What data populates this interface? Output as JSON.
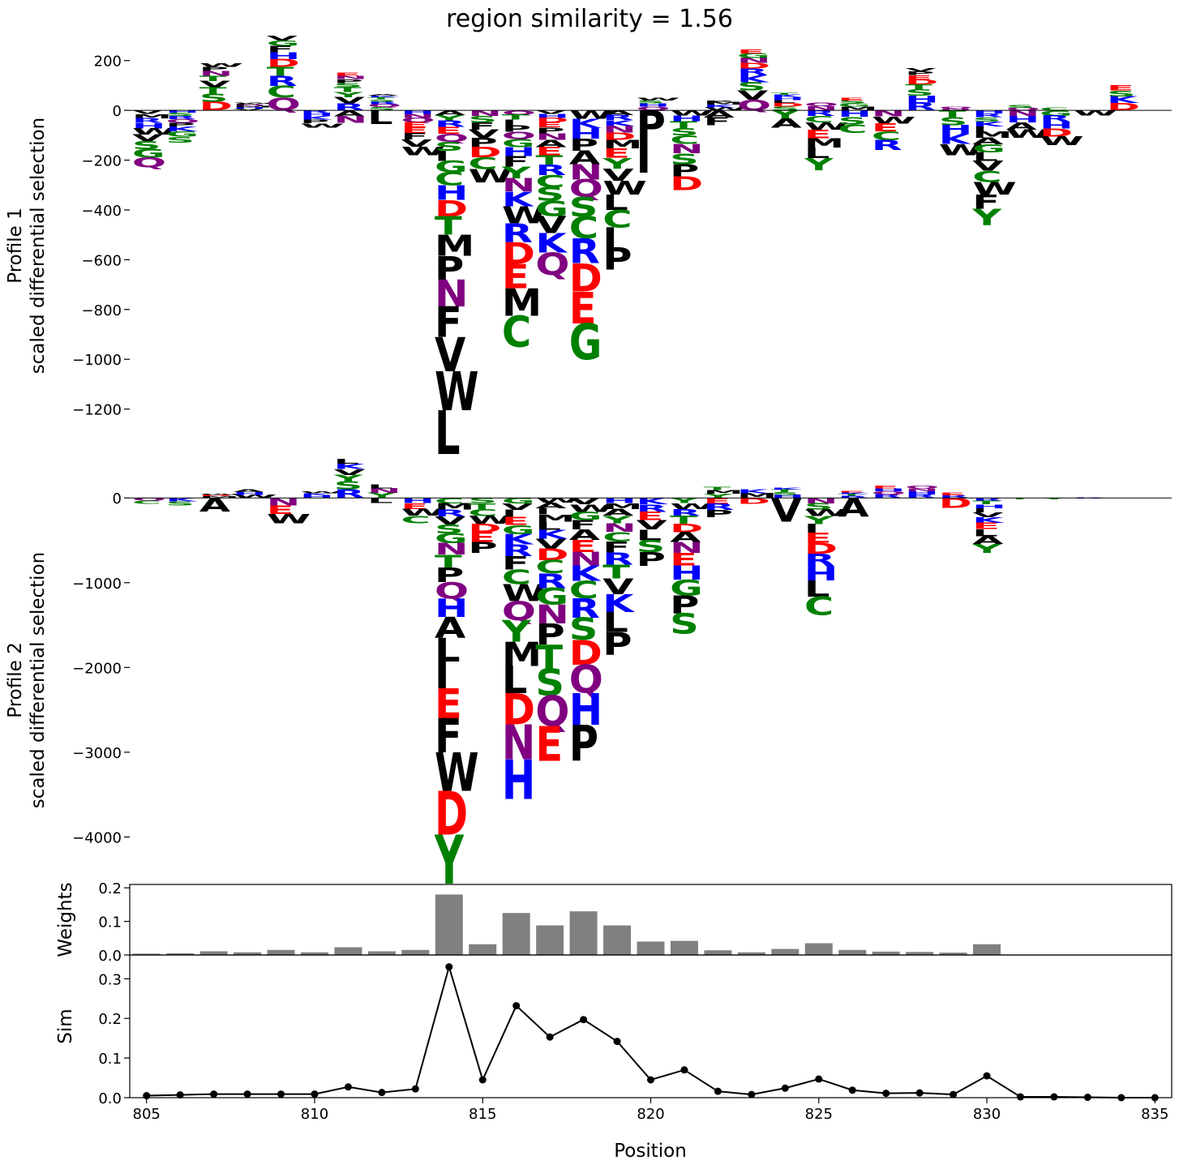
{
  "title": "region similarity = 1.56",
  "xlabel": "Position",
  "colors": {
    "green": "#008000",
    "blue": "#0000ff",
    "red": "#ff0000",
    "purple": "#800080",
    "black": "#000000",
    "bar": "#808080",
    "line": "#000000"
  },
  "letter_colors": {
    "A": "black",
    "F": "black",
    "I": "black",
    "L": "black",
    "M": "black",
    "P": "black",
    "V": "black",
    "W": "black",
    "C": "green",
    "G": "green",
    "S": "green",
    "T": "green",
    "Y": "green",
    "H": "blue",
    "K": "blue",
    "R": "blue",
    "D": "red",
    "E": "red",
    "N": "purple",
    "Q": "purple"
  },
  "chart_data": [
    {
      "type": "logo",
      "ylabel": "Profile 1\nscaled differential selection",
      "ylim": [
        -1400,
        300
      ],
      "yticks": [
        200,
        0,
        -200,
        -400,
        -600,
        -800,
        -1000,
        -1200
      ],
      "xlim": [
        804.5,
        835.5
      ],
      "positions": [
        {
          "x": 805,
          "up": "",
          "up_total": 0,
          "down": "VMRHWVSGQ",
          "down_total": -230
        },
        {
          "x": 806,
          "up": "",
          "up_total": 0,
          "down": "HSRQPKGS",
          "down_total": -130
        },
        {
          "x": 807,
          "up": "DSTVTNPW",
          "up_total": 190,
          "down": "",
          "down_total": 0
        },
        {
          "x": 808,
          "up": "VHMNPW",
          "up_total": 30,
          "down": "",
          "down_total": -30
        },
        {
          "x": 809,
          "up": "QCRTDHFGV",
          "up_total": 300,
          "down": "",
          "down_total": 0
        },
        {
          "x": 810,
          "up": "",
          "up_total": 10,
          "down": "RHKPW",
          "down_total": -70
        },
        {
          "x": 811,
          "up": "RVYTSPNE",
          "up_total": 150,
          "down": "AN",
          "down_total": -50
        },
        {
          "x": 812,
          "up": "SQRSTKA",
          "up_total": 65,
          "down": "L",
          "down_total": -55
        },
        {
          "x": 813,
          "up": "",
          "up_total": 0,
          "down": "HNQEEFVW",
          "down_total": -180
        },
        {
          "x": 814,
          "up": "",
          "up_total": 0,
          "down": "AYREQSIGCHDTMPNFVWL",
          "down_total": -1380
        },
        {
          "x": 815,
          "up": "",
          "up_total": 0,
          "down": "NSFVPDCW",
          "down_total": -290
        },
        {
          "x": 816,
          "up": "",
          "up_total": 0,
          "down": "QTIPQGHFYNKWRDEMC",
          "down_total": -950
        },
        {
          "x": 817,
          "up": "",
          "up_total": 0,
          "down": "VHDEPNAETRCSGVKQ",
          "down_total": -660
        },
        {
          "x": 818,
          "up": "",
          "up_total": 0,
          "down": "WKHPANQSCRDEG",
          "down_total": -1000
        },
        {
          "x": 819,
          "up": "",
          "up_total": 0,
          "down": "ARKNDMEYVWLCIP",
          "down_total": -640
        },
        {
          "x": 820,
          "up": "QHSW",
          "up_total": 50,
          "down": "PI",
          "down_total": -250
        },
        {
          "x": 821,
          "up": "",
          "up_total": 0,
          "down": "WHTSCNSPD",
          "down_total": -320
        },
        {
          "x": 822,
          "up": "WKMP",
          "up_total": 40,
          "down": "AF",
          "down_total": -60
        },
        {
          "x": 823,
          "up": "QVSKRDNGE",
          "up_total": 245,
          "down": "",
          "down_total": 0
        },
        {
          "x": 824,
          "up": "SDLHKT",
          "up_total": 70,
          "down": "YA",
          "down_total": -70
        },
        {
          "x": 825,
          "up": "NQ",
          "up_total": 30,
          "down": "RCWEMLY",
          "down_total": -240
        },
        {
          "x": 826,
          "up": "MGSE",
          "up_total": 50,
          "down": "HSC",
          "down_total": -90
        },
        {
          "x": 827,
          "up": "",
          "up_total": 0,
          "down": "NWECR",
          "down_total": -160
        },
        {
          "x": 828,
          "up": "RHSTDEPV",
          "up_total": 170,
          "down": "",
          "down_total": 0
        },
        {
          "x": 829,
          "up": "NQ",
          "up_total": 15,
          "down": "TSHKW",
          "down_total": -180
        },
        {
          "x": 830,
          "up": "",
          "up_total": 0,
          "down": "HRSKIMAGLVCWFY",
          "down_total": -460
        },
        {
          "x": 831,
          "up": "QS",
          "up_total": 20,
          "down": "NHAW",
          "down_total": -110
        },
        {
          "x": 832,
          "up": "C",
          "up_total": 10,
          "down": "GRHDW",
          "down_total": -140
        },
        {
          "x": 833,
          "up": "",
          "up_total": 10,
          "down": "W",
          "down_total": -20
        },
        {
          "x": 834,
          "up": "DKSE",
          "up_total": 100,
          "down": "",
          "down_total": 0
        },
        {
          "x": 835,
          "up": "",
          "up_total": 2,
          "down": "",
          "down_total": 0
        }
      ]
    },
    {
      "type": "logo",
      "ylabel": "Profile 2\nscaled differential selection",
      "ylim": [
        -4550,
        480
      ],
      "yticks": [
        0,
        -1000,
        -2000,
        -3000,
        -4000
      ],
      "xlim": [
        804.5,
        835.5
      ],
      "positions": [
        {
          "x": 805,
          "up": "",
          "up_total": 0,
          "down": "QC",
          "down_total": -70
        },
        {
          "x": 806,
          "up": "",
          "up_total": 0,
          "down": "KS",
          "down_total": -90
        },
        {
          "x": 807,
          "up": "MDW",
          "up_total": 50,
          "down": "A",
          "down_total": -160
        },
        {
          "x": 808,
          "up": "WHA",
          "up_total": 100,
          "down": "",
          "down_total": -90
        },
        {
          "x": 809,
          "up": "",
          "up_total": 0,
          "down": "NEW",
          "down_total": -300
        },
        {
          "x": 810,
          "up": "HKW",
          "up_total": 80,
          "down": "",
          "down_total": -60
        },
        {
          "x": 811,
          "up": "RSYVKL",
          "up_total": 460,
          "down": "",
          "down_total": 0
        },
        {
          "x": 812,
          "up": "YNL",
          "up_total": 160,
          "down": "L",
          "down_total": -60
        },
        {
          "x": 813,
          "up": "",
          "up_total": 0,
          "down": "HEWC",
          "down_total": -300
        },
        {
          "x": 814,
          "up": "",
          "up_total": 0,
          "down": "CMRVSGNTPQHALIEFWDY",
          "down_total": -4550
        },
        {
          "x": 815,
          "up": "",
          "up_total": 0,
          "down": "STCWDEP",
          "down_total": -650
        },
        {
          "x": 816,
          "up": "",
          "up_total": 0,
          "down": "GVIEGKRFCWQYMLDNH",
          "down_total": -3550
        },
        {
          "x": 817,
          "up": "",
          "up_total": 0,
          "down": "WAIMLKVDCRGNPTSQE",
          "down_total": -3100
        },
        {
          "x": 818,
          "up": "",
          "up_total": 0,
          "down": "VWGFAENKCRSDQHP",
          "down_total": -3100
        },
        {
          "x": 819,
          "up": "",
          "up_total": 0,
          "down": "HMAYNCFRTVKLP",
          "down_total": -1850
        },
        {
          "x": 820,
          "up": "",
          "up_total": 0,
          "down": "KREVLSP",
          "down_total": -800
        },
        {
          "x": 821,
          "up": "",
          "up_total": 0,
          "down": "YWRTDANEHGPS",
          "down_total": -1600
        },
        {
          "x": 822,
          "up": "YMT",
          "up_total": 130,
          "down": "ERP",
          "down_total": -230
        },
        {
          "x": 823,
          "up": "MK",
          "up_total": 100,
          "down": "D",
          "down_total": -70
        },
        {
          "x": 824,
          "up": "HSTK",
          "up_total": 120,
          "down": "V",
          "down_total": -280
        },
        {
          "x": 825,
          "up": "",
          "up_total": 0,
          "down": "NSWYIEDRHLC",
          "down_total": -1380
        },
        {
          "x": 826,
          "up": "RTKE",
          "up_total": 80,
          "down": "A",
          "down_total": -220
        },
        {
          "x": 827,
          "up": "RQHE",
          "up_total": 140,
          "down": "",
          "down_total": -80
        },
        {
          "x": 828,
          "up": "RHNQ",
          "up_total": 140,
          "down": "",
          "down_total": 0
        },
        {
          "x": 829,
          "up": "RE",
          "up_total": 60,
          "down": "D",
          "down_total": -120
        },
        {
          "x": 830,
          "up": "",
          "up_total": 0,
          "down": "RTHIVKELAY",
          "down_total": -650
        },
        {
          "x": 831,
          "up": "",
          "up_total": 0,
          "down": "T",
          "down_total": -15
        },
        {
          "x": 832,
          "up": "",
          "up_total": 0,
          "down": "Y",
          "down_total": -15
        },
        {
          "x": 833,
          "up": "",
          "up_total": 0,
          "down": "K",
          "down_total": -10
        },
        {
          "x": 834,
          "up": "",
          "up_total": 0,
          "down": "",
          "down_total": -5
        },
        {
          "x": 835,
          "up": "",
          "up_total": 0,
          "down": "",
          "down_total": -5
        }
      ]
    },
    {
      "type": "bar",
      "ylabel": "Weights",
      "ylim": [
        0,
        0.21
      ],
      "yticks": [
        0.0,
        0.1,
        0.2
      ],
      "ytick_labels": [
        "0.0",
        "0.1",
        "0.2"
      ],
      "x": [
        805,
        806,
        807,
        808,
        809,
        810,
        811,
        812,
        813,
        814,
        815,
        816,
        817,
        818,
        819,
        820,
        821,
        822,
        823,
        824,
        825,
        826,
        827,
        828,
        829,
        830,
        831,
        832,
        833,
        834,
        835
      ],
      "values": [
        0.004,
        0.005,
        0.011,
        0.008,
        0.015,
        0.008,
        0.023,
        0.011,
        0.015,
        0.18,
        0.032,
        0.125,
        0.088,
        0.13,
        0.088,
        0.04,
        0.042,
        0.014,
        0.008,
        0.018,
        0.035,
        0.015,
        0.01,
        0.009,
        0.007,
        0.032,
        0.001,
        0.001,
        0.001,
        0.0,
        0.0
      ]
    },
    {
      "type": "line",
      "ylabel": "Sim",
      "ylim": [
        0,
        0.36
      ],
      "yticks": [
        0.0,
        0.1,
        0.2,
        0.3
      ],
      "ytick_labels": [
        "0.0",
        "0.1",
        "0.2",
        "0.3"
      ],
      "xticks": [
        805,
        810,
        815,
        820,
        825,
        830,
        835
      ],
      "xtick_labels": [
        "805",
        "810",
        "815",
        "820",
        "825",
        "830",
        "835"
      ],
      "x": [
        805,
        806,
        807,
        808,
        809,
        810,
        811,
        812,
        813,
        814,
        815,
        816,
        817,
        818,
        819,
        820,
        821,
        822,
        823,
        824,
        825,
        826,
        827,
        828,
        829,
        830,
        831,
        832,
        833,
        834,
        835
      ],
      "values": [
        0.005,
        0.007,
        0.009,
        0.009,
        0.009,
        0.009,
        0.027,
        0.013,
        0.022,
        0.33,
        0.045,
        0.232,
        0.153,
        0.197,
        0.142,
        0.045,
        0.07,
        0.016,
        0.008,
        0.024,
        0.047,
        0.019,
        0.011,
        0.012,
        0.008,
        0.055,
        0.002,
        0.002,
        0.001,
        0.0,
        0.0
      ]
    }
  ]
}
